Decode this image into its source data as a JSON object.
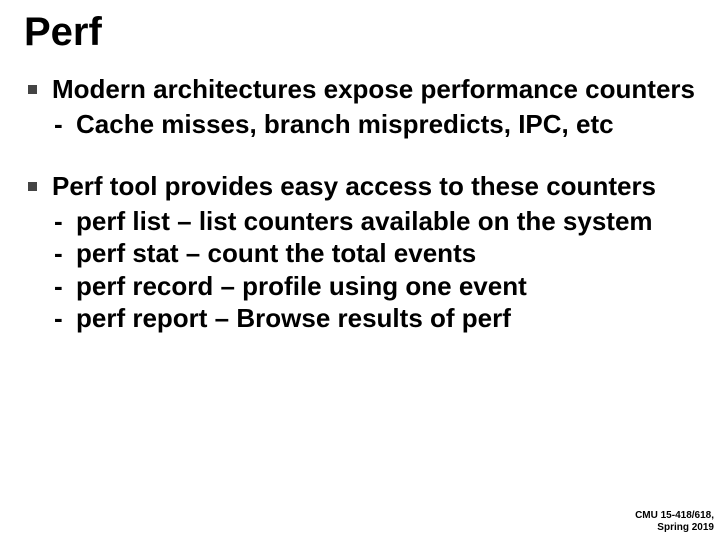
{
  "title": "Perf",
  "bullets": [
    {
      "text": "Modern architectures expose performance counters",
      "subs": [
        "Cache misses, branch mispredicts, IPC, etc"
      ]
    },
    {
      "text": "Perf tool provides easy access to these counters",
      "subs": [
        "perf list – list counters available on the system",
        "perf stat – count the total events",
        "perf record – profile using one event",
        "perf report – Browse results of perf"
      ]
    }
  ],
  "footer": {
    "line1": "CMU 15-418/618,",
    "line2": "Spring 2019"
  },
  "colors": {
    "background": "#ffffff",
    "text": "#000000",
    "bullet_square": "#444444"
  },
  "typography": {
    "title_fontsize": 40,
    "body_fontsize": 26,
    "footer_fontsize": 10,
    "font_family": "Arial",
    "weight": "bold"
  }
}
